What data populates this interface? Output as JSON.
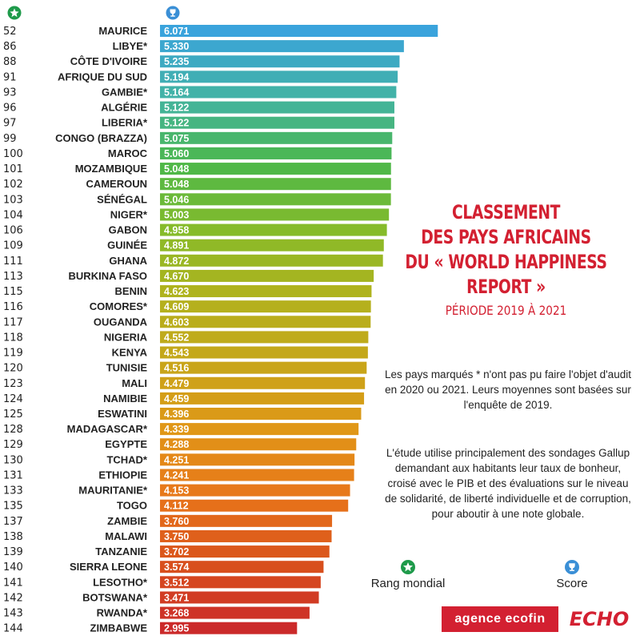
{
  "legend": {
    "rank_label": "Rang mondial",
    "score_label": "Score"
  },
  "title_lines": [
    "CLASSEMENT",
    "DES PAYS AFRICAINS",
    "DU « WORLD HAPPINESS",
    "REPORT »"
  ],
  "subtitle": "PÉRIODE 2019 À 2021",
  "note_1": "Les pays marqués * n'ont pas pu faire l'objet d'audit en 2020 ou 2021. Leurs moyennes sont basées sur l'enquête de 2019.",
  "note_2": "L'étude utilise principalement des sondages Gallup demandant aux habitants leur taux de bonheur, croisé avec le PIB et des évaluations sur le niveau de solidarité, de liberté individuelle et de corruption, pour aboutir à une note globale.",
  "brands": {
    "ecofin": "agence ecofin",
    "echo": "ECHO"
  },
  "colors": {
    "title": "#d32031",
    "legend_rank_icon": "#1e9a4a",
    "legend_score_icon": "#3a8fd6"
  },
  "chart_data": {
    "type": "bar",
    "orientation": "horizontal",
    "categories": [
      "MAURICE",
      "LIBYE*",
      "CÔTE D'IVOIRE",
      "AFRIQUE DU SUD",
      "GAMBIE*",
      "ALGÉRIE",
      "LIBERIA*",
      "CONGO (BRAZZA)",
      "MAROC",
      "MOZAMBIQUE",
      "CAMEROUN",
      "SÉNÉGAL",
      "NIGER*",
      "GABON",
      "GUINÉE",
      "GHANA",
      "BURKINA FASO",
      "BENIN",
      "COMORES*",
      "OUGANDA",
      "NIGERIA",
      "KENYA",
      "TUNISIE",
      "MALI",
      "NAMIBIE",
      "ESWATINI",
      "MADAGASCAR*",
      "EGYPTE",
      "TCHAD*",
      "ETHIOPIE",
      "MAURITANIE*",
      "TOGO",
      "ZAMBIE",
      "MALAWI",
      "TANZANIE",
      "SIERRA LEONE",
      "LESOTHO*",
      "BOTSWANA*",
      "RWANDA*",
      "ZIMBABWE"
    ],
    "ranks": [
      "52",
      "86",
      "88",
      "91",
      "93",
      "96",
      "97",
      "99",
      "100",
      "101",
      "102",
      "103",
      "104",
      "106",
      "109",
      "111",
      "113",
      "115",
      "116",
      "117",
      "118",
      "119",
      "120",
      "123",
      "124",
      "125",
      "128",
      "129",
      "130",
      "131",
      "133",
      "135",
      "137",
      "138",
      "139",
      "140",
      "141",
      "142",
      "143",
      "144"
    ],
    "values": [
      6.071,
      5.33,
      5.235,
      5.194,
      5.164,
      5.122,
      5.122,
      5.075,
      5.06,
      5.048,
      5.048,
      5.046,
      5.003,
      4.958,
      4.891,
      4.872,
      4.67,
      4.623,
      4.609,
      4.603,
      4.552,
      4.543,
      4.516,
      4.479,
      4.459,
      4.396,
      4.339,
      4.288,
      4.251,
      4.241,
      4.153,
      4.112,
      3.76,
      3.75,
      3.702,
      3.574,
      3.512,
      3.471,
      3.268,
      2.995
    ],
    "value_labels": [
      "6.071",
      "5.330",
      "5.235",
      "5.194",
      "5.164",
      "5.122",
      "5.122",
      "5.075",
      "5.060",
      "5.048",
      "5.048",
      "5.046",
      "5.003",
      "4.958",
      "4.891",
      "4.872",
      "4.670",
      "4.623",
      "4.609",
      "4.603",
      "4.552",
      "4.543",
      "4.516",
      "4.479",
      "4.459",
      "4.396",
      "4.339",
      "4.288",
      "4.251",
      "4.241",
      "4.153",
      "4.112",
      "3.760",
      "3.750",
      "3.702",
      "3.574",
      "3.512",
      "3.471",
      "3.268",
      "2.995"
    ],
    "gradient_colors": [
      "#3aa3dc",
      "#43b3a4",
      "#4cb84a",
      "#86bb2a",
      "#b2b21d",
      "#c7a61a",
      "#e09717",
      "#e8761a",
      "#d9521c",
      "#cb2a2a"
    ]
  }
}
